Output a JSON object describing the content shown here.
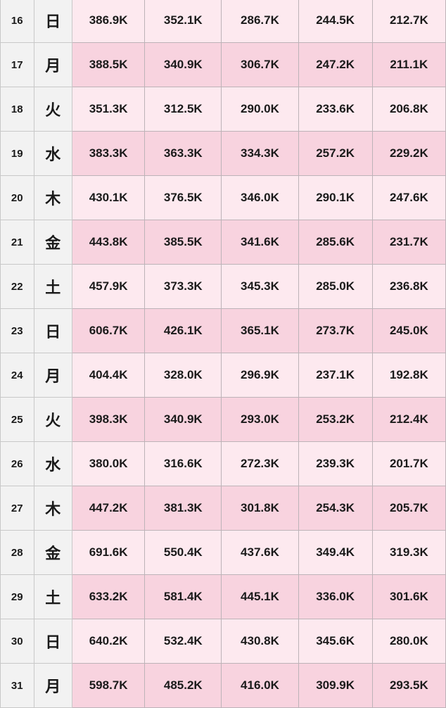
{
  "rows": [
    {
      "day": "16",
      "weekday": "日",
      "values": [
        "386.9K",
        "352.1K",
        "286.7K",
        "244.5K",
        "212.7K"
      ]
    },
    {
      "day": "17",
      "weekday": "月",
      "values": [
        "388.5K",
        "340.9K",
        "306.7K",
        "247.2K",
        "211.1K"
      ]
    },
    {
      "day": "18",
      "weekday": "火",
      "values": [
        "351.3K",
        "312.5K",
        "290.0K",
        "233.6K",
        "206.8K"
      ]
    },
    {
      "day": "19",
      "weekday": "水",
      "values": [
        "383.3K",
        "363.3K",
        "334.3K",
        "257.2K",
        "229.2K"
      ]
    },
    {
      "day": "20",
      "weekday": "木",
      "values": [
        "430.1K",
        "376.5K",
        "346.0K",
        "290.1K",
        "247.6K"
      ]
    },
    {
      "day": "21",
      "weekday": "金",
      "values": [
        "443.8K",
        "385.5K",
        "341.6K",
        "285.6K",
        "231.7K"
      ]
    },
    {
      "day": "22",
      "weekday": "土",
      "values": [
        "457.9K",
        "373.3K",
        "345.3K",
        "285.0K",
        "236.8K"
      ]
    },
    {
      "day": "23",
      "weekday": "日",
      "values": [
        "606.7K",
        "426.1K",
        "365.1K",
        "273.7K",
        "245.0K"
      ]
    },
    {
      "day": "24",
      "weekday": "月",
      "values": [
        "404.4K",
        "328.0K",
        "296.9K",
        "237.1K",
        "192.8K"
      ]
    },
    {
      "day": "25",
      "weekday": "火",
      "values": [
        "398.3K",
        "340.9K",
        "293.0K",
        "253.2K",
        "212.4K"
      ]
    },
    {
      "day": "26",
      "weekday": "水",
      "values": [
        "380.0K",
        "316.6K",
        "272.3K",
        "239.3K",
        "201.7K"
      ]
    },
    {
      "day": "27",
      "weekday": "木",
      "values": [
        "447.2K",
        "381.3K",
        "301.8K",
        "254.3K",
        "205.7K"
      ]
    },
    {
      "day": "28",
      "weekday": "金",
      "values": [
        "691.6K",
        "550.4K",
        "437.6K",
        "349.4K",
        "319.3K"
      ]
    },
    {
      "day": "29",
      "weekday": "土",
      "values": [
        "633.2K",
        "581.4K",
        "445.1K",
        "336.0K",
        "301.6K"
      ]
    },
    {
      "day": "30",
      "weekday": "日",
      "values": [
        "640.2K",
        "532.4K",
        "430.8K",
        "345.6K",
        "280.0K"
      ]
    },
    {
      "day": "31",
      "weekday": "月",
      "values": [
        "598.7K",
        "485.2K",
        "416.0K",
        "309.9K",
        "293.5K"
      ]
    }
  ],
  "colors": {
    "row_light": "#fde9ef",
    "row_dark": "#f8d3df",
    "header_col": "#f2f2f2"
  }
}
